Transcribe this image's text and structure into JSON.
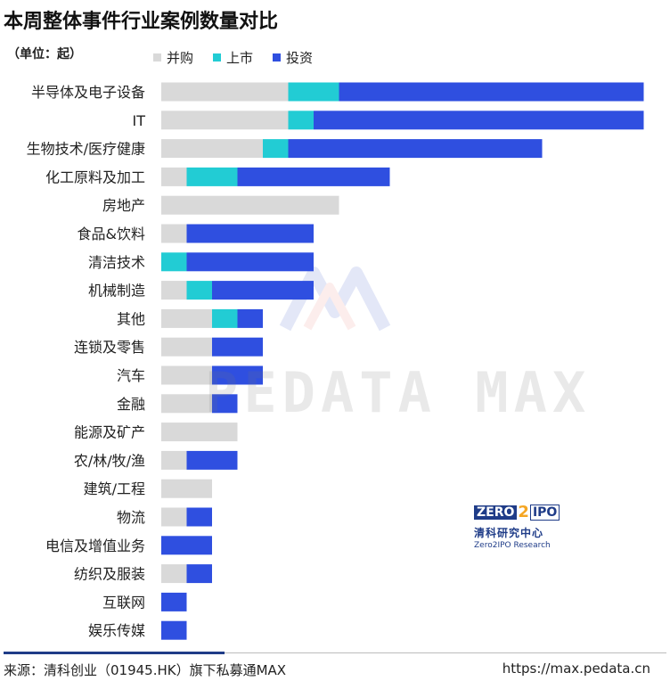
{
  "title": "本周整体事件行业案例数量对比",
  "unit": "（单位：起）",
  "legend": [
    {
      "name": "并购",
      "color": "#d9d9d9"
    },
    {
      "name": "上市",
      "color": "#22ccd4"
    },
    {
      "name": "投资",
      "color": "#2f4fe0"
    }
  ],
  "watermark": "PEDATA MAX",
  "logo": {
    "zero": "ZERO",
    "two": "2",
    "ipo": "IPO",
    "cn": "清科研究中心",
    "en": "Zero2IPO Research"
  },
  "footer": {
    "source": "来源：清科创业（01945.HK）旗下私募通MAX",
    "url": "https://max.pedata.cn"
  },
  "chart_data": {
    "type": "bar",
    "orientation": "horizontal",
    "stacked": true,
    "categories": [
      "半导体及电子设备",
      "IT",
      "生物技术/医疗健康",
      "化工原料及加工",
      "房地产",
      "食品&饮料",
      "清洁技术",
      "机械制造",
      "其他",
      "连锁及零售",
      "汽车",
      "金融",
      "能源及矿产",
      "农/林/牧/渔",
      "建筑/工程",
      "物流",
      "电信及增值业务",
      "纺织及服装",
      "互联网",
      "娱乐传媒"
    ],
    "series": [
      {
        "name": "并购",
        "color": "#d9d9d9",
        "values": [
          5,
          5,
          4,
          1,
          7,
          1,
          0,
          1,
          2,
          2,
          2,
          2,
          3,
          1,
          2,
          1,
          0,
          1,
          0,
          0
        ]
      },
      {
        "name": "上市",
        "color": "#22ccd4",
        "values": [
          2,
          1,
          1,
          2,
          0,
          0,
          1,
          1,
          1,
          0,
          0,
          0,
          0,
          0,
          0,
          0,
          0,
          0,
          0,
          0
        ]
      },
      {
        "name": "投资",
        "color": "#2f4fe0",
        "values": [
          12,
          13,
          10,
          6,
          0,
          5,
          5,
          4,
          1,
          2,
          2,
          1,
          0,
          2,
          0,
          1,
          2,
          1,
          1,
          1
        ]
      }
    ],
    "xlim": [
      0,
      19
    ],
    "grid": false,
    "legend_position": "top-left"
  }
}
